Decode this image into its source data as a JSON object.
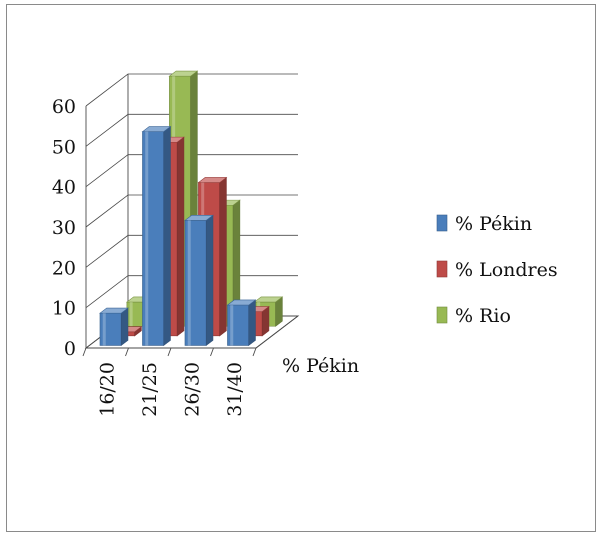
{
  "chart_data": {
    "type": "bar",
    "categories": [
      "16/20",
      "21/25",
      "26/30",
      "31/40"
    ],
    "series": [
      {
        "name": "% Pékin",
        "values": [
          8,
          53,
          31,
          10
        ],
        "color": "#4a7ebb"
      },
      {
        "name": "% Londres",
        "values": [
          1,
          48,
          38,
          6
        ],
        "color": "#be4b48"
      },
      {
        "name": "% Rio",
        "values": [
          6,
          62,
          30,
          6
        ],
        "color": "#98b954"
      }
    ],
    "depth_label": "% Pékin",
    "yticks": [
      0,
      10,
      20,
      30,
      40,
      50,
      60
    ],
    "ylim": [
      0,
      60
    ],
    "grid": true,
    "legend_position": "right"
  }
}
